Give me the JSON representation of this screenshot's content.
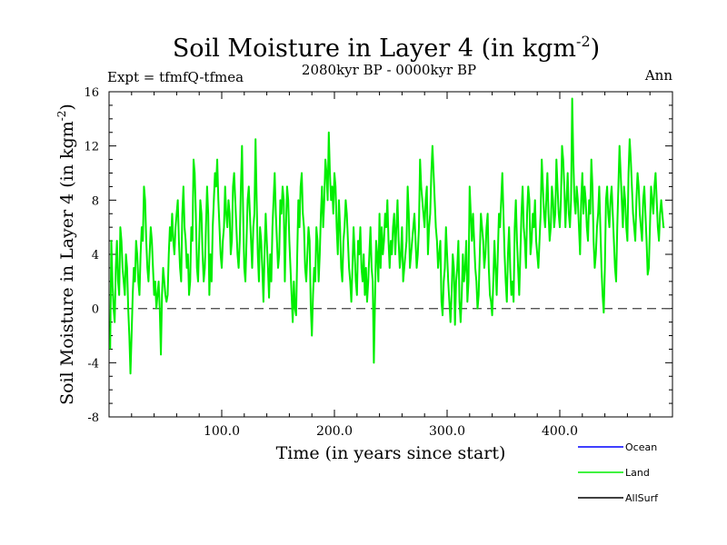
{
  "chart_data": {
    "type": "line",
    "title": "Soil Moisture in Layer 4 (in kgm",
    "title_sup": "-2",
    "title_close": ")",
    "subtitle": "2080kyr BP - 0000kyr BP",
    "left_label": "Expt = tfmfQ-tfmea",
    "right_label": "Ann",
    "xlabel": "Time (in years since start)",
    "ylabel": "Soil Moisture in Layer 4 (in kgm",
    "ylabel_sup": "-2",
    "ylabel_close": ")",
    "xlim": [
      0,
      500
    ],
    "ylim": [
      -8,
      16
    ],
    "x_ticks": [
      100,
      200,
      300,
      400
    ],
    "x_tick_labels": [
      "100.0",
      "200.0",
      "300.0",
      "400.0"
    ],
    "y_ticks": [
      -8,
      -4,
      0,
      4,
      8,
      12,
      16
    ],
    "y_tick_labels": [
      "-8",
      "-4",
      "0",
      "4",
      "8",
      "12",
      "16"
    ],
    "reference_line": 0,
    "legend": [
      {
        "name": "Ocean",
        "color": "#0000ff"
      },
      {
        "name": "Land",
        "color": "#00ee00"
      },
      {
        "name": "AllSurf",
        "color": "#000000"
      }
    ],
    "series": [
      {
        "name": "Land",
        "color": "#00ee00",
        "x_start": 1,
        "x_step": 1,
        "values": [
          -3,
          5,
          2,
          0,
          -1,
          3,
          5,
          2,
          1,
          6,
          5,
          3,
          2,
          1,
          4,
          3,
          0,
          -2,
          -4.8,
          -2,
          1,
          3,
          2,
          5,
          4,
          2,
          1,
          4,
          6,
          5,
          9,
          8,
          5,
          3,
          2,
          4,
          6,
          5,
          3,
          1,
          2,
          0,
          1,
          2,
          0,
          -3.4,
          1,
          3,
          2,
          1,
          0.5,
          1,
          4,
          6,
          5,
          7,
          5,
          4,
          6,
          7,
          8,
          5,
          3,
          2,
          7,
          9,
          6,
          5,
          3,
          4,
          1,
          2,
          6,
          5,
          11,
          10,
          7,
          3,
          2,
          5,
          8,
          7,
          4,
          2,
          3,
          6,
          9,
          7,
          1,
          4,
          2,
          6,
          8,
          10,
          9,
          11,
          8,
          6,
          4,
          3,
          5,
          6,
          9,
          7,
          6,
          8,
          7,
          4,
          5,
          9,
          10,
          8,
          6,
          4,
          3,
          5,
          9,
          12,
          7,
          3,
          2,
          5,
          8,
          9,
          7,
          5,
          3,
          6,
          7,
          12.5,
          8,
          4,
          2,
          6,
          5,
          3,
          0.5,
          4,
          7,
          5,
          3,
          0.8,
          4,
          2,
          6,
          8,
          10,
          7,
          5,
          3,
          4,
          8,
          7,
          9,
          8,
          2,
          6,
          9,
          8,
          5,
          3,
          1,
          -1,
          2,
          0,
          -0.5,
          4,
          8,
          6,
          9,
          10,
          7,
          6,
          3,
          2,
          4,
          6,
          5,
          0.2,
          -2,
          1,
          3,
          2,
          6,
          5,
          2,
          4,
          7,
          9,
          6,
          8,
          11,
          10,
          8,
          13,
          10,
          8,
          9,
          7,
          10,
          9,
          6,
          4,
          8,
          6,
          3,
          2,
          5,
          6,
          8,
          7,
          5,
          3,
          2,
          0.5,
          3,
          6,
          4,
          2,
          1,
          5,
          4,
          6,
          3,
          2,
          4,
          1,
          3,
          0.5,
          2,
          4,
          6,
          3,
          2,
          -4,
          0.5,
          5,
          4,
          2,
          7,
          3,
          6,
          4,
          5,
          7,
          6,
          8,
          5,
          3,
          5,
          4,
          6,
          7,
          4,
          6,
          8,
          5,
          3,
          4,
          6,
          2,
          3,
          4,
          5,
          9,
          7,
          3,
          4,
          5,
          6,
          7,
          5,
          3,
          4,
          6,
          11,
          9,
          8,
          7,
          6,
          8,
          9,
          4,
          6,
          7,
          10,
          12,
          10,
          8,
          6,
          5,
          3,
          4,
          5,
          0.5,
          -0.5,
          2,
          3,
          6,
          4,
          2,
          0.5,
          -1,
          1,
          4,
          3,
          -1.2,
          2,
          3,
          5,
          0.5,
          -1,
          1,
          4,
          2,
          3,
          5,
          0.5,
          2,
          9,
          7,
          5,
          7,
          5,
          3,
          2,
          0,
          1,
          4,
          7,
          6,
          5,
          3,
          4,
          6,
          7,
          3,
          1,
          0.5,
          -0.5,
          2,
          5,
          3,
          1,
          4,
          7,
          6,
          8,
          10,
          7,
          4,
          2,
          0.5,
          4,
          6,
          3,
          1,
          2,
          0.5,
          6,
          8,
          5,
          3,
          1,
          4,
          7,
          9,
          6,
          5,
          3,
          7,
          9,
          8,
          4,
          5,
          7,
          6,
          8,
          5,
          4,
          3,
          5,
          7,
          11,
          9,
          7,
          6,
          8,
          10,
          7,
          5,
          6,
          9,
          8,
          6,
          7,
          11,
          9,
          7,
          6,
          8,
          12,
          11,
          9,
          6,
          8,
          10,
          7,
          6,
          8,
          15.5,
          11,
          8,
          7,
          9,
          8,
          6,
          4,
          8,
          10,
          7,
          9,
          8,
          6,
          5,
          8,
          7,
          11,
          9,
          5,
          3,
          4,
          6,
          7,
          9,
          6,
          3,
          1,
          -0.3,
          3,
          8,
          9,
          7,
          6,
          8,
          9,
          7,
          5,
          3,
          2,
          6,
          9,
          12,
          10,
          8,
          6,
          9,
          8,
          6,
          5,
          10,
          12.5,
          11,
          9,
          7,
          6,
          5,
          8,
          10,
          9,
          7,
          6,
          5,
          8,
          9,
          7,
          5,
          2.5,
          3,
          6,
          9,
          8,
          7,
          9,
          10,
          8,
          6,
          5,
          7,
          8,
          7,
          6,
          6
        ]
      }
    ]
  }
}
